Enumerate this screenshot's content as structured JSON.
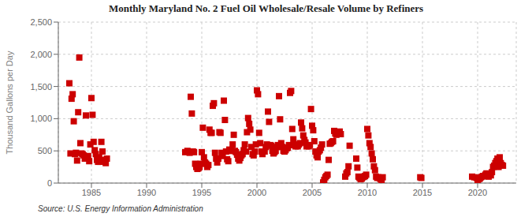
{
  "chart_data": {
    "type": "scatter",
    "title": "Monthly Maryland No. 2 Fuel Oil Wholesale/Resale Volume by Refiners",
    "y_label": "Thousand Gallons per Day",
    "annotation": "Source: U.S. Energy Information Administration",
    "color": "#cc0000",
    "marker": "square",
    "grid": true,
    "xlim": [
      1982,
      2023.5
    ],
    "ylim": [
      0,
      2500
    ],
    "xticks": [
      1985,
      1990,
      1995,
      2000,
      2005,
      2010,
      2015,
      2020
    ],
    "yticks": [
      0,
      500,
      {
        "value": 1000,
        "label": "1,000"
      },
      {
        "value": 1500,
        "label": "1,500"
      },
      {
        "value": 2000,
        "label": "2,000"
      },
      {
        "value": 2500,
        "label": "2,500"
      }
    ],
    "x": [
      1983.0,
      1983.1,
      1983.2,
      1983.3,
      1983.4,
      1983.5,
      1983.6,
      1983.7,
      1983.8,
      1983.9,
      1984.0,
      1984.1,
      1984.2,
      1984.3,
      1984.4,
      1984.5,
      1984.6,
      1984.7,
      1984.8,
      1984.9,
      1985.0,
      1985.1,
      1985.2,
      1985.3,
      1985.4,
      1985.5,
      1985.6,
      1985.7,
      1985.8,
      1985.9,
      1986.0,
      1986.1,
      1986.2,
      1986.3,
      1986.4,
      1993.5,
      1993.7,
      1993.9,
      1994.0,
      1994.1,
      1994.2,
      1994.3,
      1994.4,
      1994.5,
      1994.6,
      1994.7,
      1994.8,
      1994.9,
      1995.0,
      1995.1,
      1995.2,
      1995.3,
      1995.4,
      1995.5,
      1995.6,
      1995.7,
      1995.8,
      1995.9,
      1996.0,
      1996.1,
      1996.2,
      1996.3,
      1996.4,
      1996.5,
      1996.6,
      1996.7,
      1996.8,
      1996.9,
      1997.0,
      1997.1,
      1997.2,
      1997.3,
      1997.4,
      1997.5,
      1997.6,
      1997.7,
      1997.8,
      1997.9,
      1998.0,
      1998.1,
      1998.2,
      1998.3,
      1998.4,
      1998.5,
      1998.6,
      1998.7,
      1998.8,
      1998.9,
      1999.0,
      1999.1,
      1999.2,
      1999.3,
      1999.4,
      1999.5,
      1999.6,
      1999.7,
      1999.8,
      1999.9,
      2000.0,
      2000.1,
      2000.2,
      2000.3,
      2000.4,
      2000.5,
      2000.6,
      2000.7,
      2000.8,
      2000.9,
      2001.0,
      2001.1,
      2001.2,
      2001.3,
      2001.4,
      2001.5,
      2001.6,
      2001.7,
      2001.8,
      2001.9,
      2002.0,
      2002.1,
      2002.2,
      2002.3,
      2002.4,
      2002.5,
      2002.6,
      2002.7,
      2002.8,
      2002.9,
      2003.0,
      2003.1,
      2003.2,
      2003.3,
      2003.4,
      2003.5,
      2003.6,
      2003.7,
      2003.8,
      2003.9,
      2004.0,
      2004.1,
      2004.2,
      2004.3,
      2004.4,
      2004.5,
      2004.6,
      2004.7,
      2004.8,
      2004.9,
      2005.0,
      2005.1,
      2005.2,
      2005.3,
      2005.4,
      2005.5,
      2005.6,
      2005.7,
      2005.8,
      2005.9,
      2006.0,
      2006.1,
      2006.2,
      2006.3,
      2006.4,
      2006.5,
      2006.6,
      2006.7,
      2006.8,
      2006.9,
      2007.0,
      2007.1,
      2007.2,
      2007.3,
      2007.4,
      2007.5,
      2007.6,
      2008.0,
      2008.1,
      2008.2,
      2008.3,
      2008.4,
      2009.0,
      2009.1,
      2009.2,
      2009.3,
      2009.4,
      2009.5,
      2009.6,
      2009.7,
      2009.8,
      2009.9,
      2010.0,
      2010.1,
      2010.2,
      2010.3,
      2010.4,
      2010.5,
      2010.6,
      2010.7,
      2010.8,
      2010.9,
      2011.0,
      2011.1,
      2011.2,
      2011.3,
      2011.4,
      2014.8,
      2014.9,
      2019.5,
      2019.7,
      2019.9,
      2020.0,
      2020.1,
      2020.2,
      2020.3,
      2020.4,
      2020.5,
      2020.6,
      2020.7,
      2020.8,
      2021.0,
      2021.1,
      2021.2,
      2021.3,
      2021.4,
      2021.5,
      2021.6,
      2021.7,
      2021.8,
      2021.9,
      2022.0,
      2022.1,
      2022.2,
      2022.3
    ],
    "values": [
      1550,
      460,
      1310,
      1380,
      960,
      450,
      470,
      350,
      1100,
      1950,
      620,
      460,
      450,
      430,
      380,
      1050,
      380,
      420,
      340,
      600,
      1320,
      1060,
      640,
      510,
      450,
      360,
      330,
      400,
      330,
      640,
      490,
      360,
      350,
      310,
      380,
      480,
      500,
      470,
      1340,
      1080,
      490,
      480,
      300,
      250,
      220,
      230,
      250,
      300,
      480,
      860,
      400,
      320,
      300,
      250,
      280,
      830,
      780,
      780,
      1200,
      1240,
      470,
      380,
      320,
      380,
      790,
      780,
      470,
      420,
      1280,
      980,
      490,
      370,
      340,
      520,
      500,
      500,
      600,
      750,
      500,
      480,
      440,
      380,
      350,
      390,
      430,
      450,
      510,
      600,
      490,
      790,
      1010,
      920,
      830,
      560,
      450,
      430,
      490,
      600,
      1440,
      1380,
      780,
      620,
      490,
      450,
      490,
      490,
      560,
      600,
      1110,
      950,
      590,
      580,
      500,
      460,
      480,
      500,
      560,
      590,
      1350,
      990,
      620,
      560,
      500,
      490,
      510,
      540,
      550,
      590,
      1400,
      1430,
      840,
      680,
      590,
      570,
      580,
      570,
      600,
      620,
      940,
      850,
      740,
      670,
      630,
      570,
      580,
      570,
      590,
      1150,
      890,
      820,
      650,
      490,
      430,
      400,
      490,
      510,
      550,
      600,
      10,
      50,
      90,
      110,
      130,
      360,
      610,
      620,
      640,
      650,
      810,
      770,
      750,
      760,
      780,
      800,
      760,
      100,
      150,
      170,
      260,
      580,
      380,
      240,
      100,
      80,
      60,
      70,
      90,
      100,
      110,
      130,
      840,
      740,
      620,
      560,
      460,
      370,
      260,
      200,
      100,
      80,
      90,
      80,
      60,
      50,
      90,
      90,
      80,
      100,
      90,
      80,
      50,
      60,
      70,
      90,
      100,
      110,
      110,
      130,
      150,
      100,
      130,
      120,
      170,
      250,
      270,
      310,
      340,
      380,
      250,
      400,
      310,
      280,
      270
    ]
  }
}
